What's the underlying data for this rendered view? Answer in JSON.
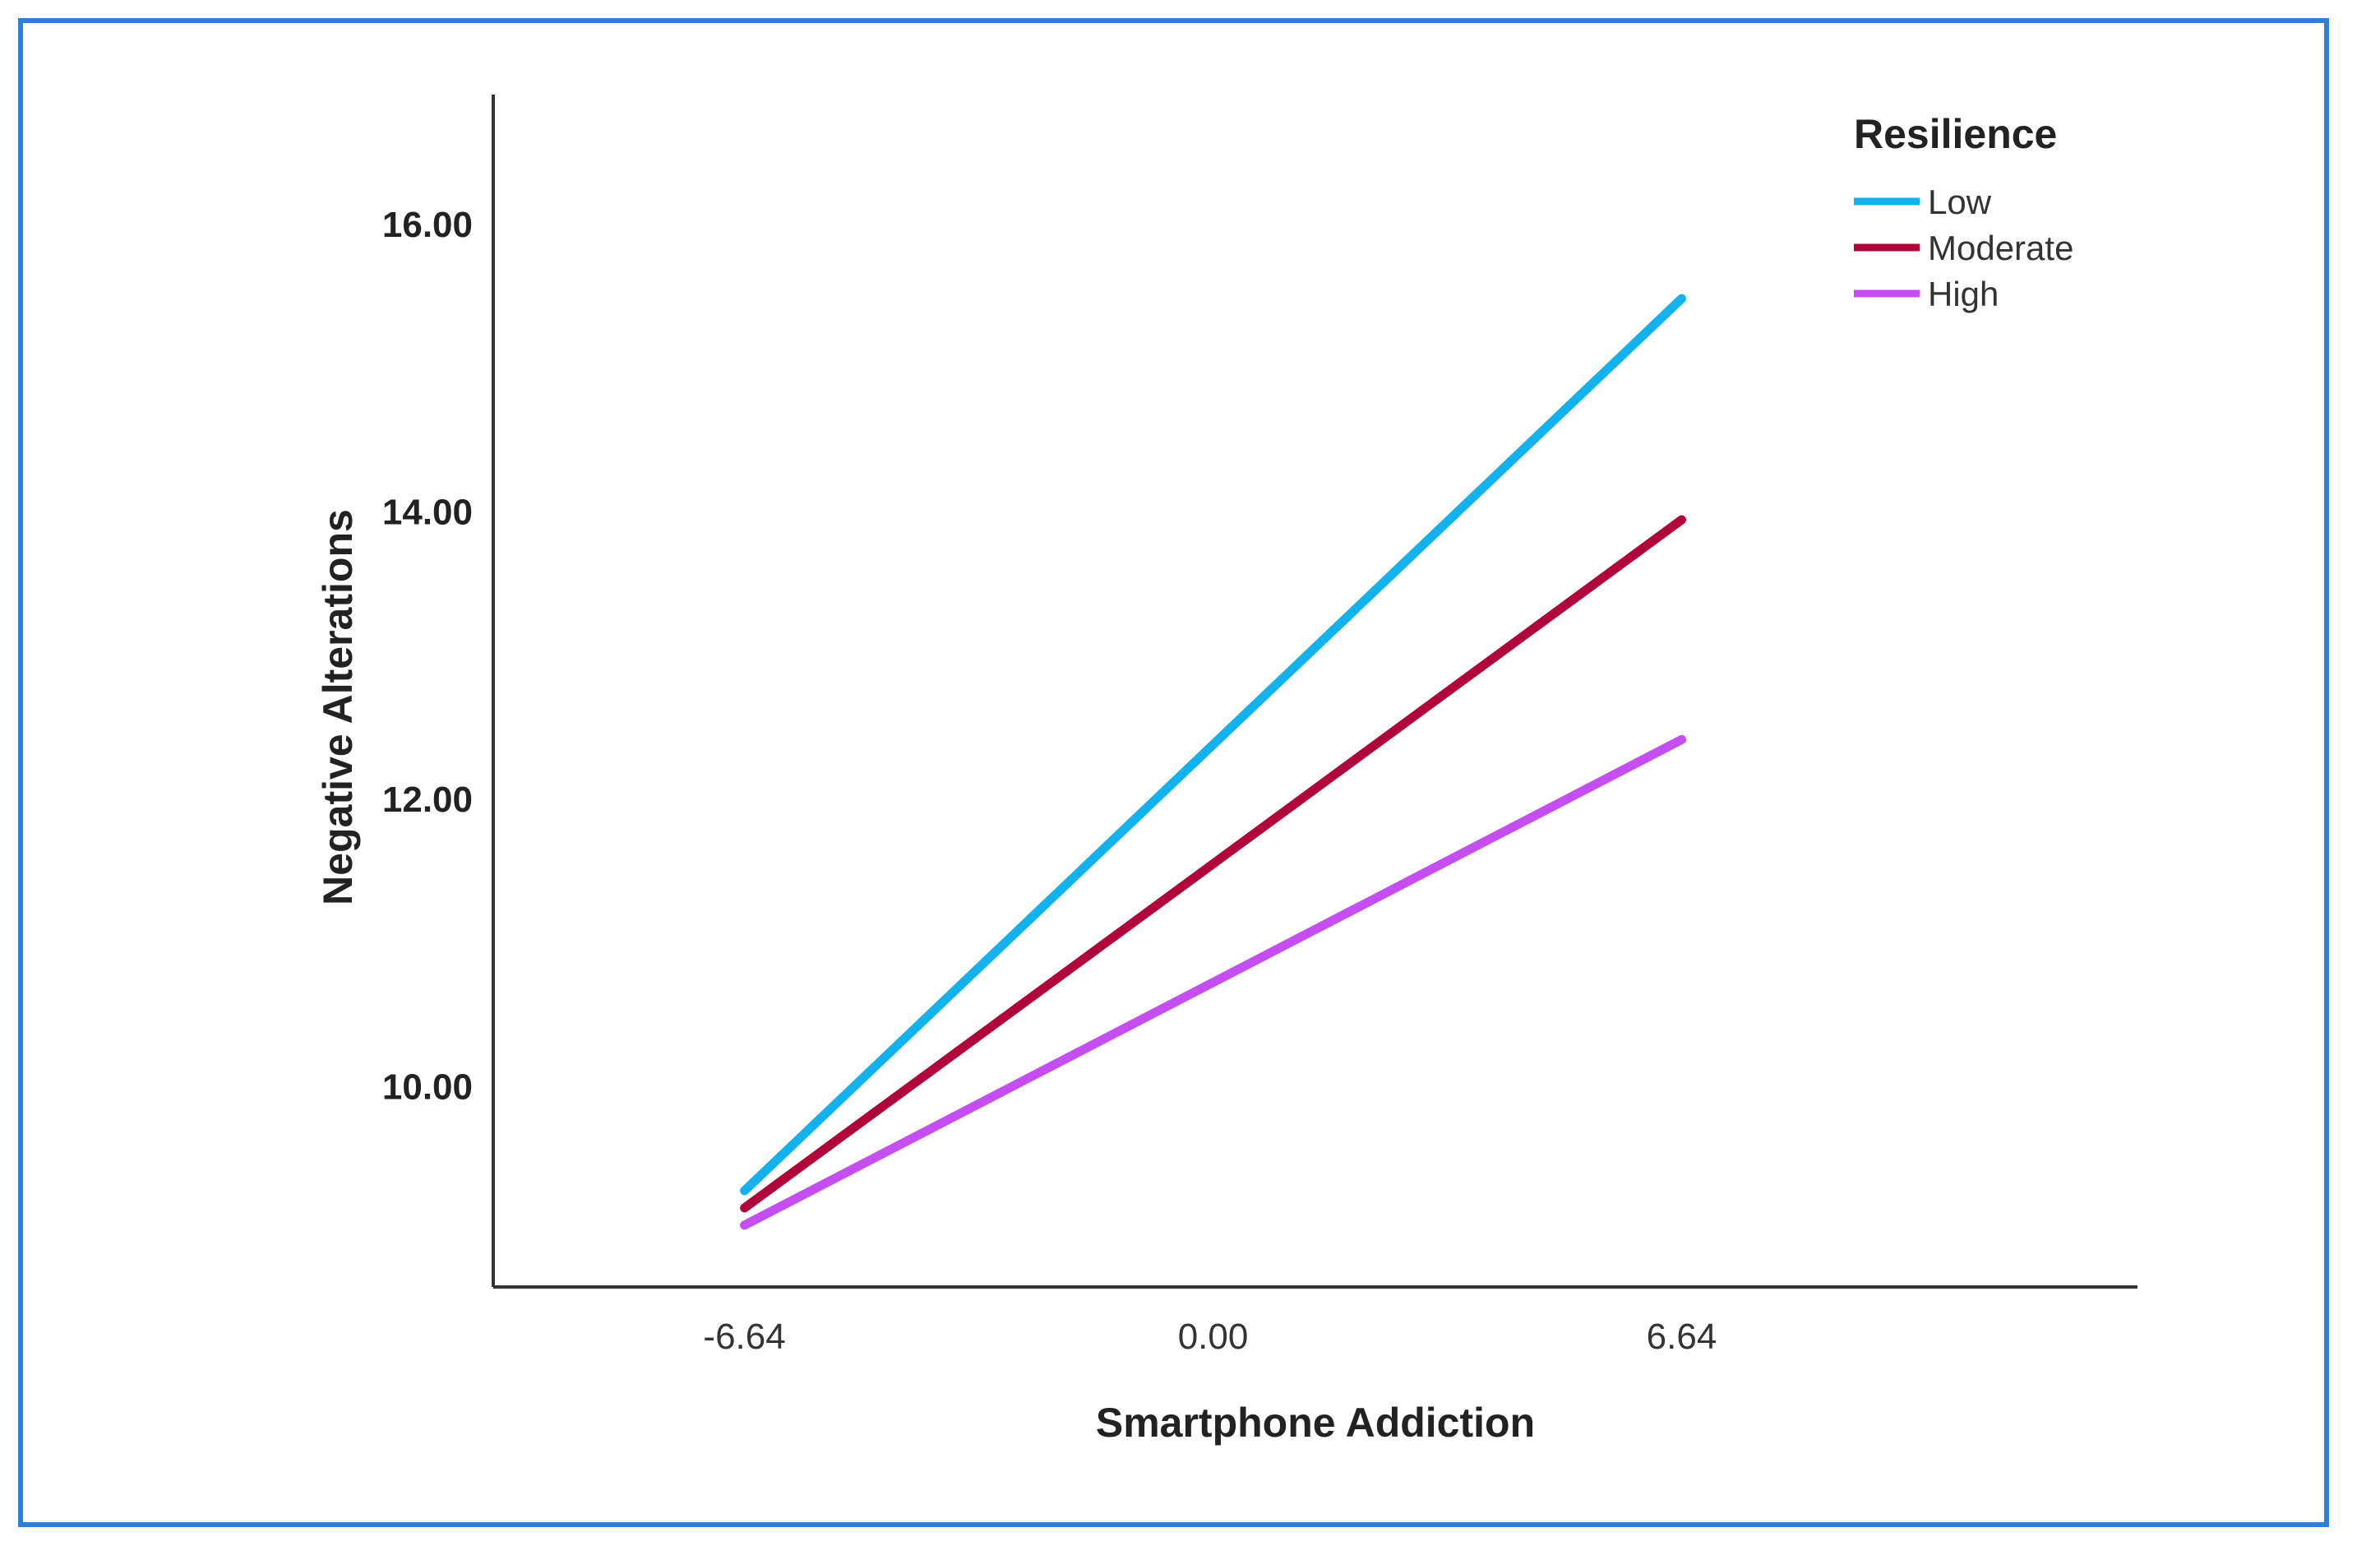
{
  "chart_data": {
    "type": "line",
    "title": "",
    "xlabel": "Smartphone Addiction",
    "ylabel": "Negative Alterations",
    "x_ticks": [
      "-6.64",
      "0.00",
      "6.64"
    ],
    "y_ticks": [
      "10.00",
      "12.00",
      "14.00",
      "16.00"
    ],
    "xlim": [
      -10.2,
      13.1
    ],
    "ylim": [
      8.6,
      16.9
    ],
    "grid": false,
    "legend": {
      "title": "Resilience",
      "position": "top-right"
    },
    "series": [
      {
        "name": "Low",
        "color": "#13B2EC",
        "x": [
          -6.64,
          6.64
        ],
        "y": [
          9.27,
          15.48
        ]
      },
      {
        "name": "Moderate",
        "color": "#B0063A",
        "x": [
          -6.64,
          6.64
        ],
        "y": [
          9.15,
          13.94
        ]
      },
      {
        "name": "High",
        "color": "#C44EF0",
        "x": [
          -6.64,
          6.64
        ],
        "y": [
          9.03,
          12.41
        ]
      }
    ]
  }
}
